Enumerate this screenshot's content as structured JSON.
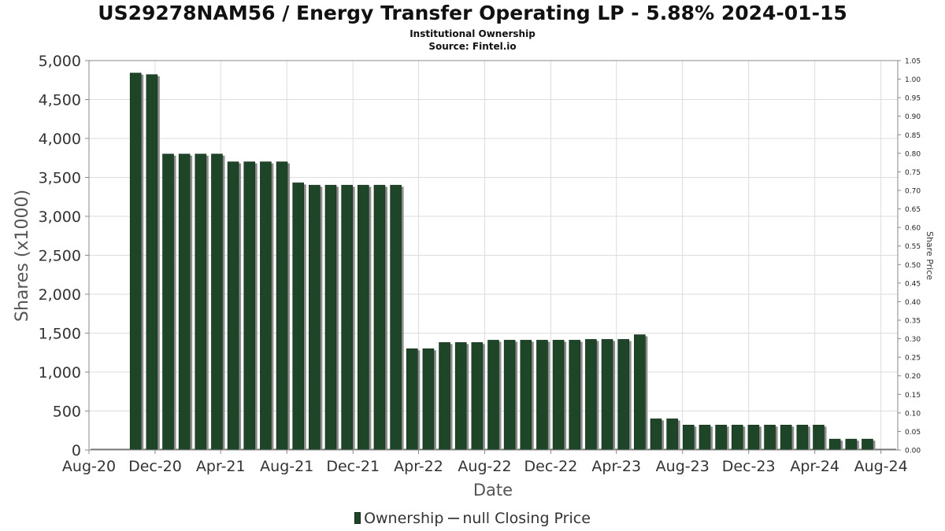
{
  "header": {
    "title": "US29278NAM56 / Energy Transfer Operating LP - 5.88% 2024-01-15",
    "subtitle": "Institutional Ownership",
    "source": "Source: Fintel.io"
  },
  "legend": {
    "ownership": "Ownership",
    "price": "null Closing Price"
  },
  "colors": {
    "bar": "#1e4527",
    "bar_shadow": "#8c8c8c",
    "grid": "#dddddd",
    "axis": "#888888"
  },
  "chart_data": {
    "type": "bar",
    "xlabel": "Date",
    "ylabel": "Shares (x1000)",
    "y2label": "Share Price",
    "ylim": [
      0,
      5000
    ],
    "y2lim": [
      0,
      1.05
    ],
    "xlim": [
      "2020-08-01",
      "2024-09-01"
    ],
    "grid": true,
    "legend_position": "bottom",
    "x_ticks": [
      "Aug-20",
      "Dec-20",
      "Apr-21",
      "Aug-21",
      "Dec-21",
      "Apr-22",
      "Aug-22",
      "Dec-22",
      "Apr-23",
      "Aug-23",
      "Dec-23",
      "Apr-24",
      "Aug-24"
    ],
    "y_ticks": [
      "0",
      "500",
      "1,000",
      "1,500",
      "2,000",
      "2,500",
      "3,000",
      "3,500",
      "4,000",
      "4,500",
      "5,000"
    ],
    "y2_ticks": [
      "0.00",
      "0.05",
      "0.10",
      "0.15",
      "0.20",
      "0.25",
      "0.30",
      "0.35",
      "0.40",
      "0.45",
      "0.50",
      "0.55",
      "0.60",
      "0.65",
      "0.70",
      "0.75",
      "0.80",
      "0.85",
      "0.90",
      "0.95",
      "1.00",
      "1.05"
    ],
    "series": [
      {
        "name": "Ownership",
        "x": [
          "2020-10-26",
          "2020-11-25",
          "2020-12-25",
          "2021-01-24",
          "2021-02-23",
          "2021-03-25",
          "2021-04-24",
          "2021-05-24",
          "2021-06-23",
          "2021-07-23",
          "2021-08-22",
          "2021-09-21",
          "2021-10-21",
          "2021-11-20",
          "2021-12-20",
          "2022-01-19",
          "2022-02-18",
          "2022-03-20",
          "2022-04-19",
          "2022-05-19",
          "2022-06-18",
          "2022-07-18",
          "2022-08-17",
          "2022-09-16",
          "2022-10-16",
          "2022-11-15",
          "2022-12-15",
          "2023-01-14",
          "2023-02-13",
          "2023-03-15",
          "2023-04-14",
          "2023-05-14",
          "2023-06-13",
          "2023-07-13",
          "2023-08-12",
          "2023-09-11",
          "2023-10-11",
          "2023-11-10",
          "2023-12-10",
          "2024-01-09",
          "2024-02-08",
          "2024-03-09",
          "2024-04-08",
          "2024-05-08",
          "2024-06-07",
          "2024-07-07"
        ],
        "values": [
          4840,
          4820,
          3800,
          3800,
          3800,
          3800,
          3700,
          3700,
          3700,
          3700,
          3430,
          3400,
          3400,
          3400,
          3400,
          3400,
          3400,
          1300,
          1300,
          1380,
          1380,
          1380,
          1410,
          1410,
          1410,
          1410,
          1410,
          1410,
          1420,
          1420,
          1420,
          1480,
          400,
          400,
          320,
          320,
          320,
          320,
          320,
          320,
          320,
          320,
          320,
          140,
          140,
          140
        ]
      }
    ]
  }
}
